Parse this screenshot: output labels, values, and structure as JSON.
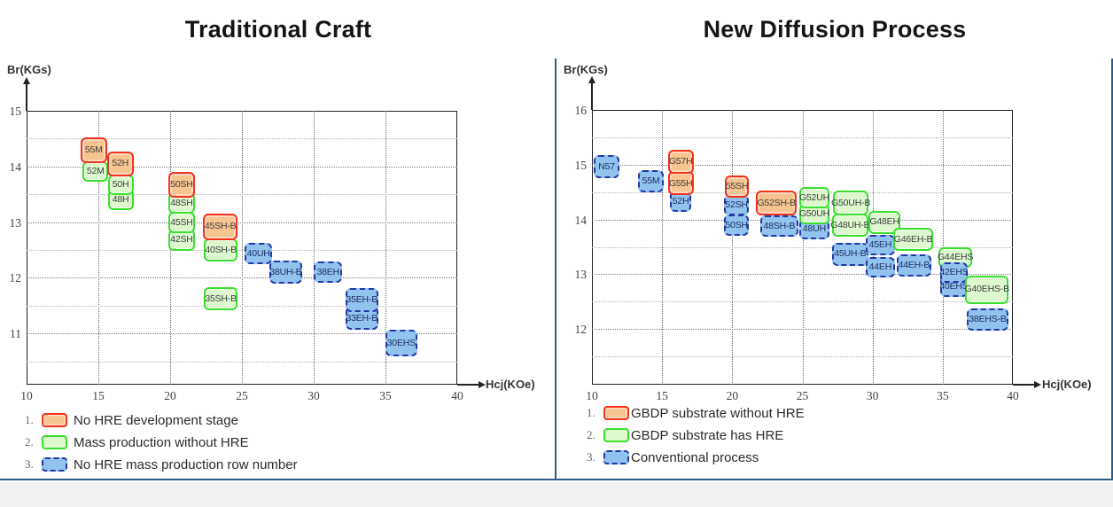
{
  "style": {
    "red_box": {
      "border": "#f5321c",
      "fill": "#f6c48f",
      "inner": "#fbd9c2"
    },
    "green_box": {
      "border": "#38e02c",
      "fill": "#ddf8cf"
    },
    "blue_box": {
      "border": "#2337a8",
      "fill": "#92c3ee"
    },
    "panel_border": "#2f5a86",
    "footer_strip": "#f1f1f1"
  },
  "chart_data": [
    {
      "type": "scatter",
      "title": "Traditional Craft",
      "x_label": "Hcj(KOe)",
      "y_label": "Br(KGs)",
      "xlim": [
        10,
        40
      ],
      "ylim": [
        10,
        15
      ],
      "x_ticks": [
        10,
        15,
        20,
        25,
        30,
        35,
        40
      ],
      "y_ticks": [
        15,
        14,
        13,
        12,
        11
      ],
      "grid": true,
      "legend_position": "bottom-left",
      "legend": [
        {
          "num": "1.",
          "style": "red",
          "label": "No HRE development stage"
        },
        {
          "num": "2.",
          "style": "green",
          "label": "Mass production without HRE"
        },
        {
          "num": "3.",
          "style": "blue",
          "label": "No HRE mass production row number"
        }
      ],
      "boxes": [
        {
          "label": "52M",
          "style": "green",
          "x1": 13.9,
          "x2": 15.7,
          "y": 13.91
        },
        {
          "label": "55M",
          "style": "red",
          "x1": 13.75,
          "x2": 15.6,
          "y": 14.29,
          "h": 0.45
        },
        {
          "label": "48H",
          "style": "green",
          "x1": 15.65,
          "x2": 17.45,
          "y": 13.4
        },
        {
          "label": "50H",
          "style": "green",
          "x1": 15.65,
          "x2": 17.45,
          "y": 13.67
        },
        {
          "label": "52H",
          "style": "red",
          "x1": 15.6,
          "x2": 17.45,
          "y": 14.05,
          "h": 0.45
        },
        {
          "label": "42SH",
          "style": "green",
          "x1": 19.9,
          "x2": 21.7,
          "y": 12.68
        },
        {
          "label": "45SH",
          "style": "green",
          "x1": 19.9,
          "x2": 21.7,
          "y": 12.99
        },
        {
          "label": "48SH",
          "style": "green",
          "x1": 19.9,
          "x2": 21.7,
          "y": 13.34
        },
        {
          "label": "50SH",
          "style": "red",
          "x1": 19.9,
          "x2": 21.7,
          "y": 13.67,
          "h": 0.45
        },
        {
          "label": "35SH-B",
          "style": "green",
          "x1": 22.35,
          "x2": 24.7,
          "y": 11.62,
          "h": 0.42
        },
        {
          "label": "40SH-B",
          "style": "green",
          "x1": 22.35,
          "x2": 24.7,
          "y": 12.5,
          "h": 0.42
        },
        {
          "label": "45SH-B",
          "style": "red",
          "x1": 22.3,
          "x2": 24.7,
          "y": 12.92,
          "h": 0.48
        },
        {
          "label": "38UH-B",
          "style": "blue",
          "x1": 26.9,
          "x2": 29.2,
          "y": 12.1,
          "h": 0.42
        },
        {
          "label": "40UH",
          "style": "blue",
          "x1": 25.2,
          "x2": 27.1,
          "y": 12.44
        },
        {
          "label": "38EH",
          "style": "blue",
          "x1": 30.0,
          "x2": 32.0,
          "y": 12.1
        },
        {
          "label": "33EH-B",
          "style": "blue",
          "x1": 32.2,
          "x2": 34.5,
          "y": 11.27,
          "h": 0.42
        },
        {
          "label": "35EH-B",
          "style": "blue",
          "x1": 32.2,
          "x2": 34.5,
          "y": 11.6,
          "h": 0.42
        },
        {
          "label": "30EHS",
          "style": "blue",
          "x1": 35.0,
          "x2": 37.2,
          "y": 10.83,
          "h": 0.48
        }
      ]
    },
    {
      "type": "scatter",
      "title": "New Diffusion Process",
      "x_label": "Hcj(KOe)",
      "y_label": "Br(KGs)",
      "xlim": [
        10,
        40
      ],
      "ylim": [
        11,
        16
      ],
      "x_ticks": [
        10,
        15,
        20,
        25,
        30,
        35,
        40
      ],
      "y_ticks": [
        16,
        15,
        14,
        13,
        12
      ],
      "grid": true,
      "legend_position": "bottom-left",
      "legend": [
        {
          "num": "1.",
          "style": "red",
          "label": "GBDP substrate without HRE"
        },
        {
          "num": "2.",
          "style": "green",
          "label": "GBDP substrate has HRE"
        },
        {
          "num": "3.",
          "style": "blue",
          "label": "Conventional process"
        }
      ],
      "boxes": [
        {
          "label": "N57",
          "style": "blue",
          "x1": 10.15,
          "x2": 11.95,
          "y": 14.96,
          "h": 0.42
        },
        {
          "label": "55M",
          "style": "blue",
          "x1": 13.3,
          "x2": 15.1,
          "y": 14.7,
          "h": 0.4
        },
        {
          "label": "52H",
          "style": "blue",
          "x1": 15.55,
          "x2": 17.1,
          "y": 14.33
        },
        {
          "label": "G55H",
          "style": "red",
          "x1": 15.4,
          "x2": 17.25,
          "y": 14.66,
          "h": 0.44
        },
        {
          "label": "G57H",
          "style": "red",
          "x1": 15.4,
          "x2": 17.25,
          "y": 15.05,
          "h": 0.44
        },
        {
          "label": "50SH",
          "style": "blue",
          "x1": 19.4,
          "x2": 21.2,
          "y": 13.9
        },
        {
          "label": "52SH",
          "style": "blue",
          "x1": 19.4,
          "x2": 21.2,
          "y": 14.26
        },
        {
          "label": "55SH",
          "style": "red",
          "x1": 19.45,
          "x2": 21.2,
          "y": 14.6,
          "h": 0.42
        },
        {
          "label": "48SH-B",
          "style": "blue",
          "x1": 22.0,
          "x2": 24.7,
          "y": 13.88,
          "h": 0.4
        },
        {
          "label": "G52SH-B",
          "style": "red",
          "x1": 21.7,
          "x2": 24.6,
          "y": 14.3,
          "h": 0.44
        },
        {
          "label": "48UH",
          "style": "blue",
          "x1": 24.8,
          "x2": 26.9,
          "y": 13.82
        },
        {
          "label": "G50UH",
          "style": "green",
          "x1": 24.8,
          "x2": 26.9,
          "y": 14.1
        },
        {
          "label": "G52UH",
          "style": "green",
          "x1": 24.8,
          "x2": 26.9,
          "y": 14.4
        },
        {
          "label": "45UH-B",
          "style": "blue",
          "x1": 27.1,
          "x2": 29.7,
          "y": 13.37,
          "h": 0.42
        },
        {
          "label": "G48UH-B",
          "style": "green",
          "x1": 27.1,
          "x2": 29.7,
          "y": 13.9,
          "h": 0.42
        },
        {
          "label": "G50UH-B",
          "style": "green",
          "x1": 27.2,
          "x2": 29.7,
          "y": 14.3,
          "h": 0.44
        },
        {
          "label": "44EH",
          "style": "blue",
          "x1": 29.5,
          "x2": 31.6,
          "y": 13.13
        },
        {
          "label": "45EH",
          "style": "blue",
          "x1": 29.5,
          "x2": 31.6,
          "y": 13.53
        },
        {
          "label": "G48EH",
          "style": "green",
          "x1": 29.7,
          "x2": 32.0,
          "y": 13.95,
          "h": 0.42
        },
        {
          "label": "44EH-B",
          "style": "blue",
          "x1": 31.7,
          "x2": 34.2,
          "y": 13.16,
          "h": 0.4
        },
        {
          "label": "G46EH-B",
          "style": "green",
          "x1": 31.5,
          "x2": 34.3,
          "y": 13.64,
          "h": 0.42
        },
        {
          "label": "G44EHS",
          "style": "green",
          "x1": 34.7,
          "x2": 37.1,
          "y": 13.31
        },
        {
          "label": "40EHS",
          "style": "blue",
          "x1": 34.8,
          "x2": 36.8,
          "y": 12.78
        },
        {
          "label": "42EHS",
          "style": "blue",
          "x1": 34.8,
          "x2": 36.8,
          "y": 13.03
        },
        {
          "label": "G40EHS-B",
          "style": "green",
          "x1": 36.6,
          "x2": 39.7,
          "y": 12.72,
          "h": 0.52
        },
        {
          "label": "38EHS-B",
          "style": "blue",
          "x1": 36.7,
          "x2": 39.7,
          "y": 12.17,
          "h": 0.4
        }
      ]
    }
  ]
}
